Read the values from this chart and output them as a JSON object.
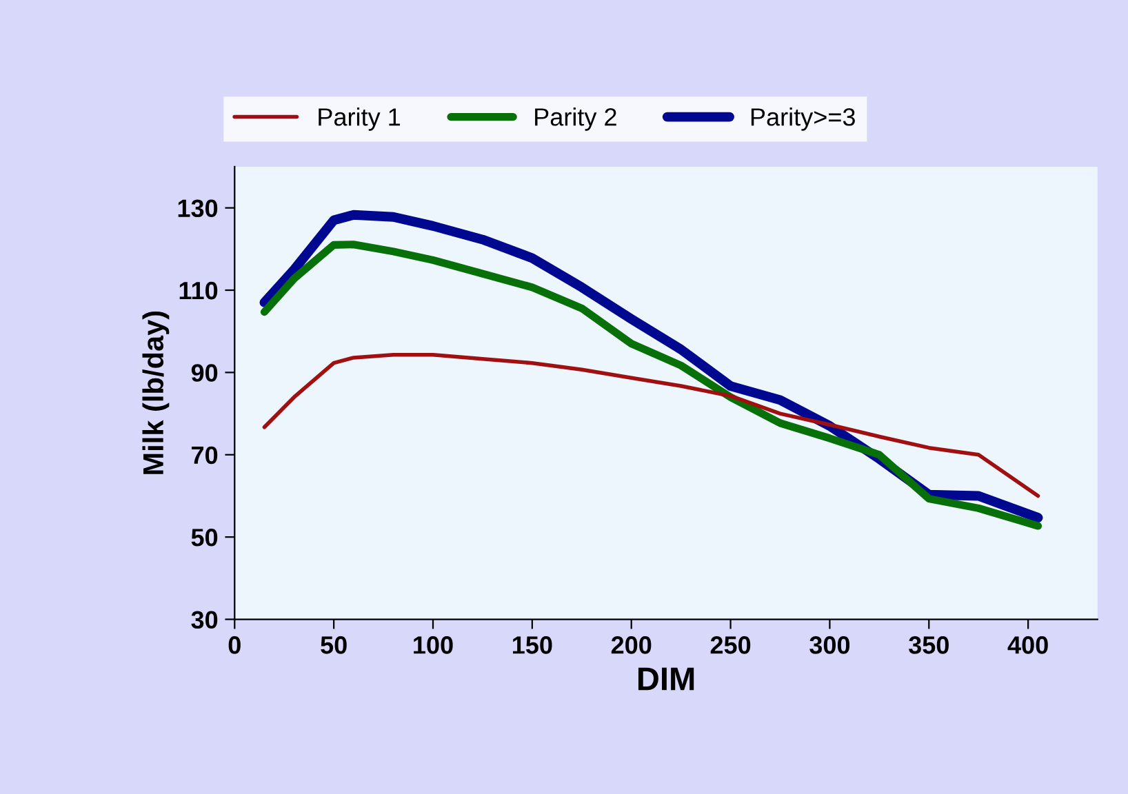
{
  "chart_data": {
    "type": "line",
    "xlabel": "DIM",
    "ylabel": "Milk (lb/day)",
    "x": [
      15,
      30,
      50,
      60,
      80,
      100,
      125,
      150,
      175,
      200,
      225,
      250,
      275,
      300,
      325,
      350,
      375,
      405
    ],
    "xlim": [
      0,
      435
    ],
    "xticks": [
      0,
      50,
      100,
      150,
      200,
      250,
      300,
      350,
      400
    ],
    "ylim": [
      30,
      140
    ],
    "yticks": [
      30,
      50,
      70,
      90,
      110,
      130
    ],
    "grid": false,
    "legend": "top",
    "marker": "none",
    "line_style": "solid",
    "series": [
      {
        "name": "Parity 1",
        "color": "#a01010",
        "values": [
          76.7,
          84,
          92.3,
          93.6,
          94.3,
          94.3,
          93.3,
          92.3,
          90.7,
          88.7,
          86.7,
          84.3,
          80,
          77.3,
          74.4,
          71.7,
          70,
          60
        ]
      },
      {
        "name": "Parity 2",
        "color": "#087008",
        "values": [
          104.7,
          112.8,
          121,
          121.1,
          119.4,
          117.3,
          114,
          110.7,
          105.6,
          97,
          91.7,
          84,
          77.7,
          74,
          70,
          59.3,
          57,
          52.7
        ]
      },
      {
        "name": "Parity>=3",
        "color": "#000890",
        "values": [
          107,
          115,
          127,
          128.3,
          127.8,
          125.6,
          122.3,
          117.8,
          110.7,
          103,
          95.6,
          86.7,
          83.3,
          77,
          69,
          60.3,
          60,
          54.7
        ]
      }
    ]
  }
}
